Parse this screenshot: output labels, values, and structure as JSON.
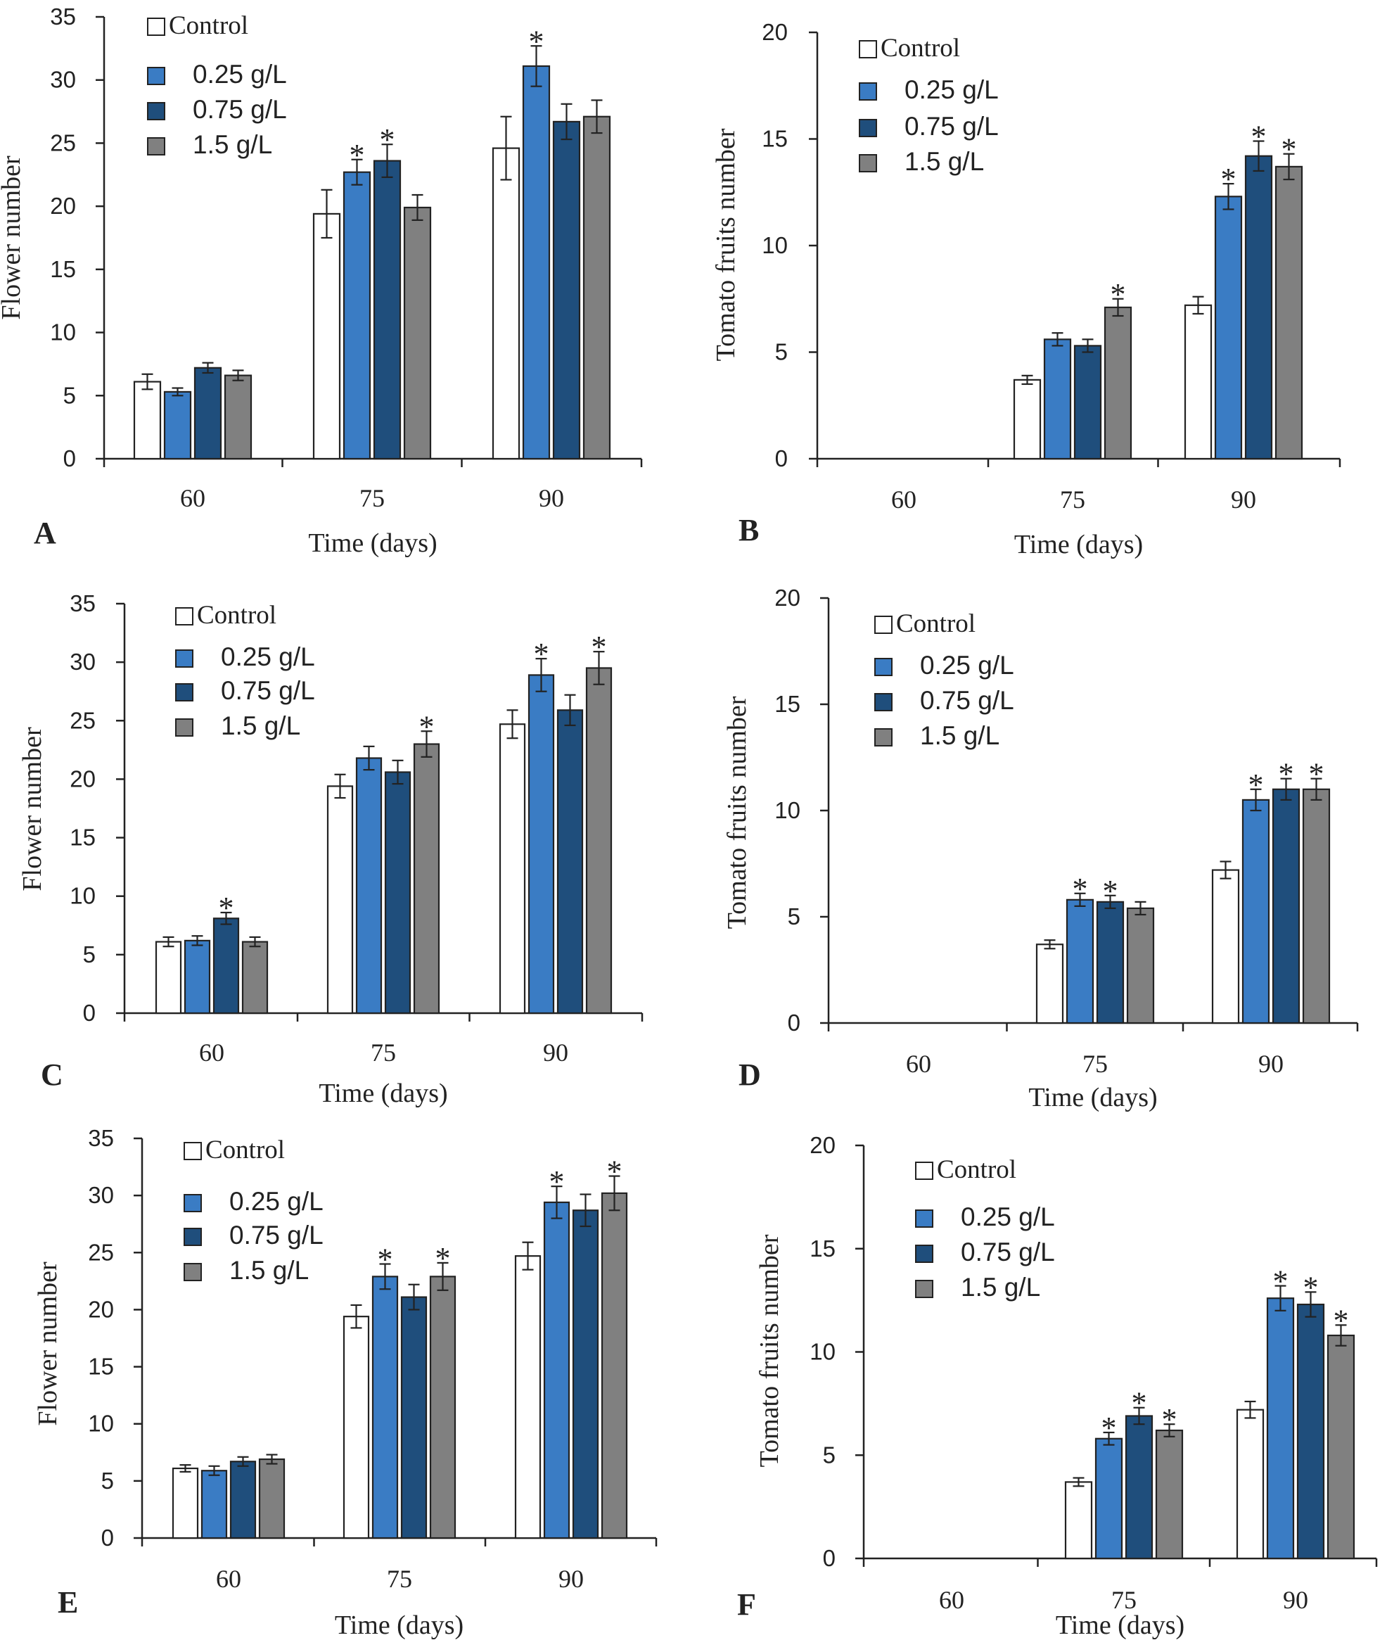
{
  "colors": {
    "Control": "#ffffff",
    "0.25 g/L": "#3a7cc4",
    "0.75 g/L": "#1f4e7c",
    "1.5 g/L": "#808080",
    "axis": "#222222"
  },
  "chart_data": [
    {
      "type": "bar",
      "panel": "A",
      "categories": [
        "60",
        "75",
        "90"
      ],
      "xlabel": "Time (days)",
      "ylabel": "Flower number",
      "ylim": [
        0,
        35
      ],
      "yticks": [
        0,
        5,
        10,
        15,
        20,
        25,
        30,
        35
      ],
      "legend": [
        "Control",
        "0.25 g/L",
        "0.75 g/L",
        "1.5 g/L"
      ],
      "series": [
        {
          "name": "Control",
          "values": [
            6.1,
            19.4,
            24.6
          ],
          "errors": [
            0.6,
            1.9,
            2.5
          ],
          "sig": [
            false,
            false,
            false
          ]
        },
        {
          "name": "0.25 g/L",
          "values": [
            5.3,
            22.7,
            31.1
          ],
          "errors": [
            0.3,
            1.0,
            1.6
          ],
          "sig": [
            false,
            true,
            true
          ]
        },
        {
          "name": "0.75 g/L",
          "values": [
            7.2,
            23.6,
            26.7
          ],
          "errors": [
            0.4,
            1.3,
            1.4
          ],
          "sig": [
            false,
            true,
            false
          ]
        },
        {
          "name": "1.5 g/L",
          "values": [
            6.6,
            19.9,
            27.1
          ],
          "errors": [
            0.4,
            1.0,
            1.3
          ],
          "sig": [
            false,
            false,
            false
          ]
        }
      ]
    },
    {
      "type": "bar",
      "panel": "B",
      "categories": [
        "60",
        "75",
        "90"
      ],
      "xlabel": "Time (days)",
      "ylabel": "Tomato fruits number",
      "ylim": [
        0,
        20
      ],
      "yticks": [
        0,
        5,
        10,
        15,
        20
      ],
      "legend": [
        "Control",
        "0.25 g/L",
        "0.75 g/L",
        "1.5 g/L"
      ],
      "series": [
        {
          "name": "Control",
          "values": [
            0,
            3.7,
            7.2
          ],
          "errors": [
            0,
            0.2,
            0.4
          ],
          "sig": [
            false,
            false,
            false
          ]
        },
        {
          "name": "0.25 g/L",
          "values": [
            0,
            5.6,
            12.3
          ],
          "errors": [
            0,
            0.3,
            0.6
          ],
          "sig": [
            false,
            false,
            true
          ]
        },
        {
          "name": "0.75 g/L",
          "values": [
            0,
            5.3,
            14.2
          ],
          "errors": [
            0,
            0.3,
            0.7
          ],
          "sig": [
            false,
            false,
            true
          ]
        },
        {
          "name": "1.5 g/L",
          "values": [
            0,
            7.1,
            13.7
          ],
          "errors": [
            0,
            0.4,
            0.6
          ],
          "sig": [
            false,
            true,
            true
          ]
        }
      ]
    },
    {
      "type": "bar",
      "panel": "C",
      "categories": [
        "60",
        "75",
        "90"
      ],
      "xlabel": "Time (days)",
      "ylabel": "Flower number",
      "ylim": [
        0,
        35
      ],
      "yticks": [
        0,
        5,
        10,
        15,
        20,
        25,
        30,
        35
      ],
      "legend": [
        "Control",
        "0.25 g/L",
        "0.75 g/L",
        "1.5 g/L"
      ],
      "series": [
        {
          "name": "Control",
          "values": [
            6.1,
            19.4,
            24.7
          ],
          "errors": [
            0.4,
            1.0,
            1.2
          ],
          "sig": [
            false,
            false,
            false
          ]
        },
        {
          "name": "0.25 g/L",
          "values": [
            6.2,
            21.8,
            28.9
          ],
          "errors": [
            0.4,
            1.0,
            1.4
          ],
          "sig": [
            false,
            false,
            true
          ]
        },
        {
          "name": "0.75 g/L",
          "values": [
            8.1,
            20.6,
            25.9
          ],
          "errors": [
            0.5,
            1.0,
            1.3
          ],
          "sig": [
            true,
            false,
            false
          ]
        },
        {
          "name": "1.5 g/L",
          "values": [
            6.1,
            23.0,
            29.5
          ],
          "errors": [
            0.4,
            1.1,
            1.4
          ],
          "sig": [
            false,
            true,
            true
          ]
        }
      ]
    },
    {
      "type": "bar",
      "panel": "D",
      "categories": [
        "60",
        "75",
        "90"
      ],
      "xlabel": "Time (days)",
      "ylabel": "Tomato fruits number",
      "ylim": [
        0,
        20
      ],
      "yticks": [
        0,
        5,
        10,
        15,
        20
      ],
      "legend": [
        "Control",
        "0.25 g/L",
        "0.75 g/L",
        "1.5 g/L"
      ],
      "series": [
        {
          "name": "Control",
          "values": [
            0,
            3.7,
            7.2
          ],
          "errors": [
            0,
            0.2,
            0.4
          ],
          "sig": [
            false,
            false,
            false
          ]
        },
        {
          "name": "0.25 g/L",
          "values": [
            0,
            5.8,
            10.5
          ],
          "errors": [
            0,
            0.3,
            0.5
          ],
          "sig": [
            false,
            true,
            true
          ]
        },
        {
          "name": "0.75 g/L",
          "values": [
            0,
            5.7,
            11.0
          ],
          "errors": [
            0,
            0.3,
            0.5
          ],
          "sig": [
            false,
            true,
            true
          ]
        },
        {
          "name": "1.5 g/L",
          "values": [
            0,
            5.4,
            11.0
          ],
          "errors": [
            0,
            0.3,
            0.5
          ],
          "sig": [
            false,
            false,
            true
          ]
        }
      ]
    },
    {
      "type": "bar",
      "panel": "E",
      "categories": [
        "60",
        "75",
        "90"
      ],
      "xlabel": "Time (days)",
      "ylabel": "Flower number",
      "ylim": [
        0,
        35
      ],
      "yticks": [
        0,
        5,
        10,
        15,
        20,
        25,
        30,
        35
      ],
      "legend": [
        "Control",
        "0.25 g/L",
        "0.75 g/L",
        "1.5 g/L"
      ],
      "series": [
        {
          "name": "Control",
          "values": [
            6.1,
            19.4,
            24.7
          ],
          "errors": [
            0.3,
            1.0,
            1.2
          ],
          "sig": [
            false,
            false,
            false
          ]
        },
        {
          "name": "0.25 g/L",
          "values": [
            5.9,
            22.9,
            29.4
          ],
          "errors": [
            0.4,
            1.1,
            1.4
          ],
          "sig": [
            false,
            true,
            true
          ]
        },
        {
          "name": "0.75 g/L",
          "values": [
            6.7,
            21.1,
            28.7
          ],
          "errors": [
            0.4,
            1.1,
            1.4
          ],
          "sig": [
            false,
            false,
            false
          ]
        },
        {
          "name": "1.5 g/L",
          "values": [
            6.9,
            22.9,
            30.2
          ],
          "errors": [
            0.4,
            1.2,
            1.5
          ],
          "sig": [
            false,
            true,
            true
          ]
        }
      ]
    },
    {
      "type": "bar",
      "panel": "F",
      "categories": [
        "60",
        "75",
        "90"
      ],
      "xlabel": "Time (days)",
      "ylabel": "Tomato fruits number",
      "ylim": [
        0,
        20
      ],
      "yticks": [
        0,
        5,
        10,
        15,
        20
      ],
      "legend": [
        "Control",
        "0.25 g/L",
        "0.75 g/L",
        "1.5 g/L"
      ],
      "series": [
        {
          "name": "Control",
          "values": [
            0,
            3.7,
            7.2
          ],
          "errors": [
            0,
            0.2,
            0.4
          ],
          "sig": [
            false,
            false,
            false
          ]
        },
        {
          "name": "0.25 g/L",
          "values": [
            0,
            5.8,
            12.6
          ],
          "errors": [
            0,
            0.3,
            0.6
          ],
          "sig": [
            false,
            true,
            true
          ]
        },
        {
          "name": "0.75 g/L",
          "values": [
            0,
            6.9,
            12.3
          ],
          "errors": [
            0,
            0.4,
            0.6
          ],
          "sig": [
            false,
            true,
            true
          ]
        },
        {
          "name": "1.5 g/L",
          "values": [
            0,
            6.2,
            10.8
          ],
          "errors": [
            0,
            0.3,
            0.5
          ],
          "sig": [
            false,
            true,
            true
          ]
        }
      ]
    }
  ]
}
